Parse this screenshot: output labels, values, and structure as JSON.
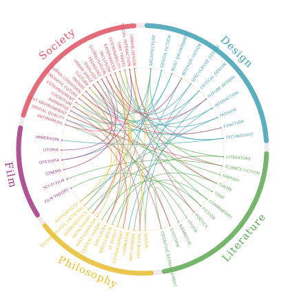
{
  "categories": [
    {
      "id": "design",
      "name": "Design",
      "color": "#3fa3b5",
      "terms": [
        "Architecture",
        "Design Fiction",
        "Built Environment",
        "Interior Design",
        "Speculative Design",
        "Critical Design",
        "Future Design",
        "Interaction",
        "Fashion",
        "Function",
        "Technology"
      ]
    },
    {
      "id": "literature",
      "name": "Literature",
      "color": "#5fad56",
      "terms": [
        "Literature",
        "Science Fiction",
        "Fantasy",
        "Theme",
        "Tone",
        "Commentary",
        "Fiction",
        "Poetics",
        "Utopia",
        "Narrative",
        "Dystopia",
        "Cognitive Estrangement"
      ]
    },
    {
      "id": "philosophy",
      "name": "Philosophy",
      "color": "#e8c030",
      "terms": [
        "Novum",
        "Prediction",
        "Anti-Mimesis",
        "Cognition",
        "Estrangement",
        "Sf Effect",
        "Speculation",
        "Simulacra",
        "Critical Theory",
        "Posthumanism",
        "Meta-Theory",
        "Hermeneutics",
        "Technological Criticism",
        "Authenticity"
      ]
    },
    {
      "id": "film",
      "name": "Film",
      "color": "#a33a86",
      "terms": [
        "Film Theory",
        "Sci-Fi Film",
        "Cinema",
        "Dystopia",
        "Utopia",
        "Immersion"
      ]
    },
    {
      "id": "society",
      "name": "Society",
      "color": "#e05565",
      "terms": [
        "Antimimesis",
        "Spatial Quality",
        "Built Environment",
        "Narrative",
        "Cognition",
        "Estrangement",
        "Cinematic Future",
        "Human Condition",
        "Trends",
        "Culture",
        "Urban Space",
        "Ideology",
        "Pedagogy",
        "Globalisation",
        "Inclusion",
        "Experiences",
        "Sustainability",
        "Time Travel",
        "Social Interaction",
        "Urban Design"
      ]
    }
  ],
  "links": [
    [
      0,
      30
    ],
    [
      0,
      52
    ],
    [
      1,
      35
    ],
    [
      1,
      60
    ],
    [
      2,
      55
    ],
    [
      2,
      40
    ],
    [
      3,
      28
    ],
    [
      3,
      46
    ],
    [
      4,
      24
    ],
    [
      4,
      57
    ],
    [
      5,
      50
    ],
    [
      5,
      33
    ],
    [
      6,
      23
    ],
    [
      6,
      44
    ],
    [
      7,
      51
    ],
    [
      7,
      26
    ],
    [
      8,
      58
    ],
    [
      8,
      36
    ],
    [
      9,
      48
    ],
    [
      10,
      42
    ],
    [
      10,
      59
    ],
    [
      11,
      34
    ],
    [
      11,
      53
    ],
    [
      12,
      62
    ],
    [
      12,
      38
    ],
    [
      13,
      45
    ],
    [
      14,
      29
    ],
    [
      14,
      56
    ],
    [
      15,
      49
    ],
    [
      16,
      25
    ],
    [
      16,
      61
    ],
    [
      17,
      31
    ],
    [
      17,
      54
    ],
    [
      18,
      37
    ],
    [
      19,
      43
    ],
    [
      20,
      22
    ],
    [
      21,
      47
    ],
    [
      23,
      57
    ],
    [
      24,
      63
    ],
    [
      27,
      58
    ],
    [
      28,
      52
    ],
    [
      30,
      59
    ],
    [
      32,
      50
    ],
    [
      33,
      62
    ],
    [
      35,
      48
    ],
    [
      36,
      60
    ],
    [
      39,
      55
    ],
    [
      40,
      61
    ],
    [
      41,
      53
    ],
    [
      43,
      56
    ],
    [
      44,
      27
    ],
    [
      46,
      24
    ],
    [
      47,
      54
    ],
    [
      49,
      22
    ],
    [
      51,
      30
    ],
    [
      53,
      21
    ],
    [
      58,
      33
    ],
    [
      61,
      18
    ],
    [
      63,
      10
    ],
    [
      62,
      14
    ],
    [
      56,
      3
    ],
    [
      45,
      12
    ],
    [
      57,
      6
    ],
    [
      50,
      9
    ]
  ]
}
